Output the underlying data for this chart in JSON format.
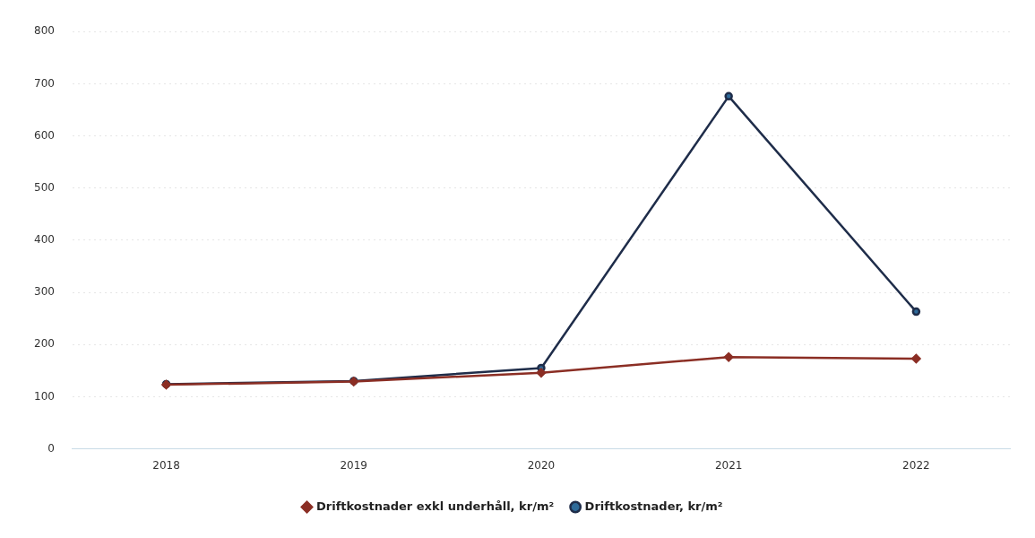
{
  "chart_data": {
    "type": "line",
    "categories": [
      "2018",
      "2019",
      "2020",
      "2021",
      "2022"
    ],
    "series": [
      {
        "name": "Driftkostnader, kr/m²",
        "color": "#1f2d4a",
        "marker": "circle",
        "values": [
          124,
          130,
          155,
          676,
          263
        ]
      },
      {
        "name": "Driftkostnader exkl underhåll, kr/m²",
        "color": "#8b2e24",
        "marker": "diamond",
        "values": [
          123,
          129,
          146,
          176,
          173
        ]
      }
    ],
    "ylim": [
      0,
      800
    ],
    "yticks": [
      0,
      100,
      200,
      300,
      400,
      500,
      600,
      700,
      800
    ],
    "grid": "y",
    "legend": "bottom"
  }
}
